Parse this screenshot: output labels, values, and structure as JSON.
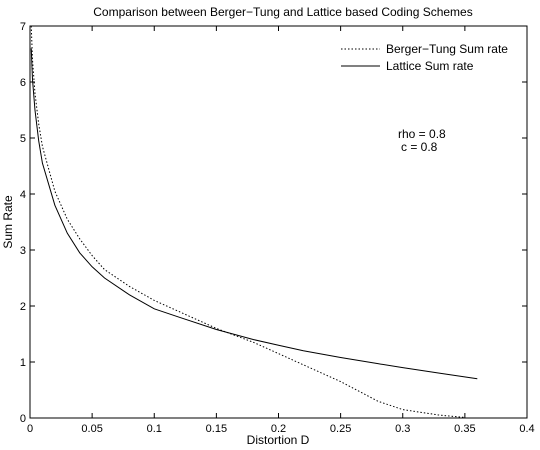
{
  "chart_data": {
    "type": "line",
    "title": "Comparison between Berger−Tung and Lattice based Coding Schemes",
    "xlabel": "Distortion D",
    "ylabel": "Sum Rate",
    "xlim": [
      0,
      0.4
    ],
    "ylim": [
      0,
      7
    ],
    "xticks": [
      "0",
      "0.05",
      "0.1",
      "0.15",
      "0.2",
      "0.25",
      "0.3",
      "0.35",
      "0.4"
    ],
    "yticks": [
      "0",
      "1",
      "2",
      "3",
      "4",
      "5",
      "6",
      "7"
    ],
    "grid": false,
    "legend_position": "top-right",
    "annotations": [
      "rho = 0.8",
      "c = 0.8"
    ],
    "series": [
      {
        "name": "Berger−Tung Sum rate",
        "style": "dotted",
        "color": "#000000",
        "x": [
          0.001,
          0.002,
          0.004,
          0.007,
          0.01,
          0.02,
          0.03,
          0.04,
          0.05,
          0.06,
          0.08,
          0.1,
          0.12,
          0.15,
          0.18,
          0.2,
          0.22,
          0.25,
          0.28,
          0.3,
          0.33,
          0.35
        ],
        "y": [
          7.0,
          6.4,
          5.8,
          5.25,
          4.85,
          4.05,
          3.55,
          3.2,
          2.9,
          2.65,
          2.35,
          2.1,
          1.9,
          1.6,
          1.35,
          1.15,
          0.95,
          0.65,
          0.3,
          0.15,
          0.05,
          0.01
        ]
      },
      {
        "name": "Lattice Sum rate",
        "style": "solid",
        "color": "#000000",
        "x": [
          0.001,
          0.002,
          0.004,
          0.007,
          0.01,
          0.02,
          0.03,
          0.04,
          0.05,
          0.06,
          0.08,
          0.1,
          0.12,
          0.15,
          0.18,
          0.2,
          0.22,
          0.25,
          0.28,
          0.3,
          0.33,
          0.36
        ],
        "y": [
          6.6,
          6.05,
          5.5,
          4.95,
          4.55,
          3.8,
          3.3,
          2.95,
          2.7,
          2.5,
          2.2,
          1.95,
          1.8,
          1.58,
          1.4,
          1.3,
          1.2,
          1.08,
          0.97,
          0.9,
          0.8,
          0.7
        ]
      }
    ]
  }
}
